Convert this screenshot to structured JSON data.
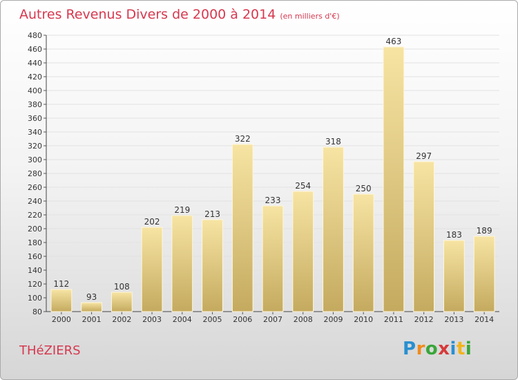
{
  "title": "Autres Revenus Divers de 2000 à 2014",
  "title_unit": "(en milliers d'€)",
  "town": "THéZIERS",
  "logo_letters": [
    {
      "ch": "P",
      "color": "#2a8fd0"
    },
    {
      "ch": "r",
      "color": "#f08a1c"
    },
    {
      "ch": "o",
      "color": "#3aa63a"
    },
    {
      "ch": "x",
      "color": "#d63a3a"
    },
    {
      "ch": "i",
      "color": "#2a8fd0"
    },
    {
      "ch": "t",
      "color": "#f0b41c"
    },
    {
      "ch": "i",
      "color": "#3aa63a"
    }
  ],
  "chart_data": {
    "type": "bar",
    "categories": [
      "2000",
      "2001",
      "2002",
      "2003",
      "2004",
      "2005",
      "2006",
      "2007",
      "2008",
      "2009",
      "2010",
      "2011",
      "2012",
      "2013",
      "2014"
    ],
    "values": [
      112,
      93,
      108,
      202,
      219,
      213,
      322,
      233,
      254,
      318,
      250,
      463,
      297,
      183,
      189
    ],
    "ylim": [
      80,
      480
    ],
    "ytick_step": 20,
    "grid": true,
    "bar_color_light": "#f7e4a3",
    "bar_color_dark": "#c4aa5f"
  }
}
